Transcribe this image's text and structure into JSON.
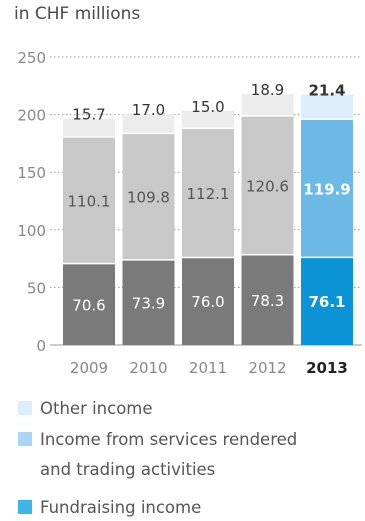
{
  "chart_data": {
    "type": "bar",
    "stacked": true,
    "unit_label": "in CHF millions",
    "categories": [
      "2009",
      "2010",
      "2011",
      "2012",
      "2013"
    ],
    "highlighted_category": "2013",
    "ylim": [
      0,
      250
    ],
    "yticks": [
      0,
      50,
      100,
      150,
      200,
      250
    ],
    "grid": "dotted horizontal",
    "series": [
      {
        "name": "Fundraising income",
        "values": [
          70.6,
          73.9,
          76.0,
          78.3,
          76.1
        ],
        "color": "#7a7a7a",
        "highlight_color": "#0a94d6",
        "label_color": "#ffffff"
      },
      {
        "name": "Income from services rendered and trading activities",
        "values": [
          110.1,
          109.8,
          112.1,
          120.6,
          119.9
        ],
        "color": "#c8c8c8",
        "highlight_color": "#6cb9e5",
        "label_color": "#555555"
      },
      {
        "name": "Other income",
        "values": [
          15.7,
          17.0,
          15.0,
          18.9,
          21.4
        ],
        "color": "#ececec",
        "highlight_color": "#dceefa",
        "label_color": "#555555"
      }
    ],
    "legend": [
      {
        "lines": [
          "Other income"
        ],
        "color": "#dceefa"
      },
      {
        "lines": [
          "Income from services rendered",
          "and trading activities"
        ],
        "color": "#a9d6f2"
      },
      {
        "lines": [
          "Fundraising income"
        ],
        "color": "#3db5e6"
      }
    ]
  }
}
